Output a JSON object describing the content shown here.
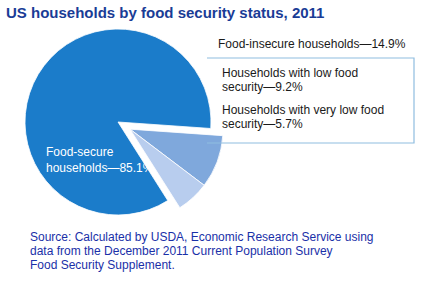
{
  "chart_data": {
    "type": "pie",
    "title": "US households by food security status, 2011",
    "categories": [
      "Food-secure households—85.1%",
      "Households with low food security—9.2%",
      "Households with very low food security—5.7%"
    ],
    "values": [
      85.1,
      9.2,
      5.7
    ],
    "colors": [
      "#1b7cca",
      "#7fa8dc",
      "#b8cdee"
    ],
    "annotations": [
      "Food-insecure households—14.9%"
    ],
    "source": [
      "Source: Calculated by USDA, Economic Research Service using",
      "data from the December 2011 Current Population Survey",
      "Food Security Supplement."
    ]
  }
}
